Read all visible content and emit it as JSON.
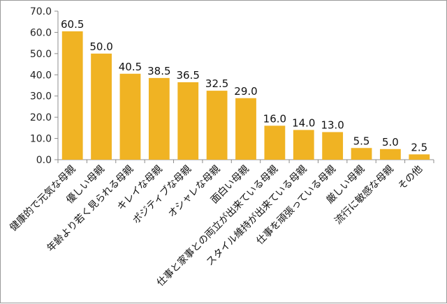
{
  "chart_data": {
    "type": "bar",
    "categories": [
      "健康的で元気な母親",
      "優しい母親",
      "年齢より若く見られる母親",
      "キレイな母親",
      "ポジティブな母親",
      "オシャレな母親",
      "面白い母親",
      "仕事と家事との両立が出来ている母親",
      "スタイル維持が出来ている母親",
      "仕事を頑張っている母親",
      "厳しい母親",
      "流行に敏感な母親",
      "その他"
    ],
    "values": [
      60.5,
      50.0,
      40.5,
      38.5,
      36.5,
      32.5,
      29.0,
      16.0,
      14.0,
      13.0,
      5.5,
      5.0,
      2.5
    ],
    "value_labels": [
      "60.5",
      "50.0",
      "40.5",
      "38.5",
      "36.5",
      "32.5",
      "29.0",
      "16.0",
      "14.0",
      "13.0",
      "5.5",
      "5.0",
      "2.5"
    ],
    "yticks": [
      "0.0",
      "10.0",
      "20.0",
      "30.0",
      "40.0",
      "50.0",
      "60.0",
      "70.0"
    ],
    "ylim": [
      0,
      70
    ],
    "bar_color": "#F0B323",
    "axis_color": "#8c8c8c",
    "grid": false,
    "legend": "none"
  }
}
